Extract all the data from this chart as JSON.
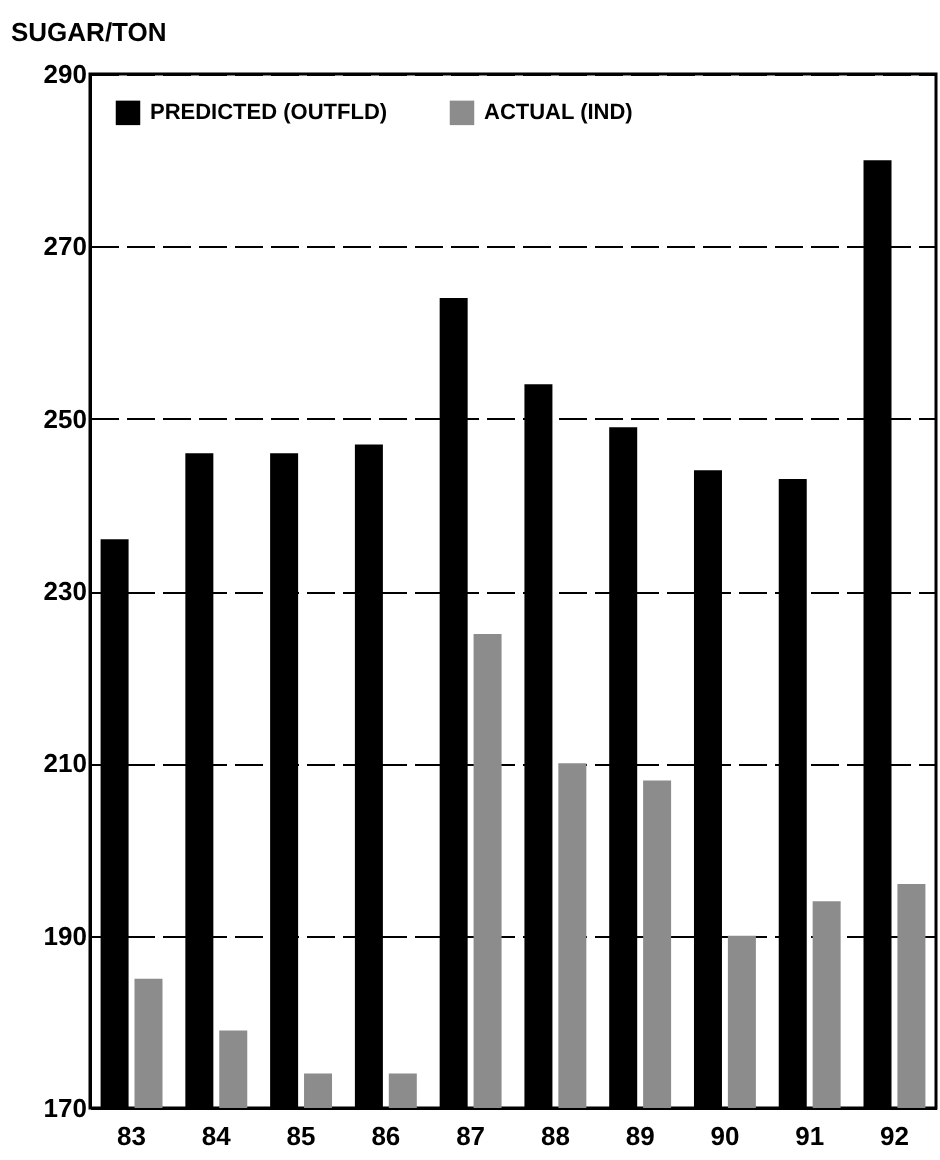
{
  "chart_data": {
    "type": "bar",
    "ylabel": "SUGAR/TON",
    "categories": [
      "83",
      "84",
      "85",
      "86",
      "87",
      "88",
      "89",
      "90",
      "91",
      "92"
    ],
    "series": [
      {
        "name": "PREDICTED (OUTFLD)",
        "color": "#000000",
        "values": [
          236,
          246,
          246,
          247,
          264,
          254,
          249,
          244,
          243,
          280
        ]
      },
      {
        "name": "ACTUAL (IND)",
        "color": "#8c8c8c",
        "values": [
          185,
          179,
          174,
          174,
          225,
          210,
          208,
          190,
          194,
          196
        ]
      }
    ],
    "ylim": [
      170,
      290
    ],
    "yticks": [
      170,
      190,
      210,
      230,
      250,
      270,
      290
    ],
    "grid": "y",
    "legend": "top"
  }
}
